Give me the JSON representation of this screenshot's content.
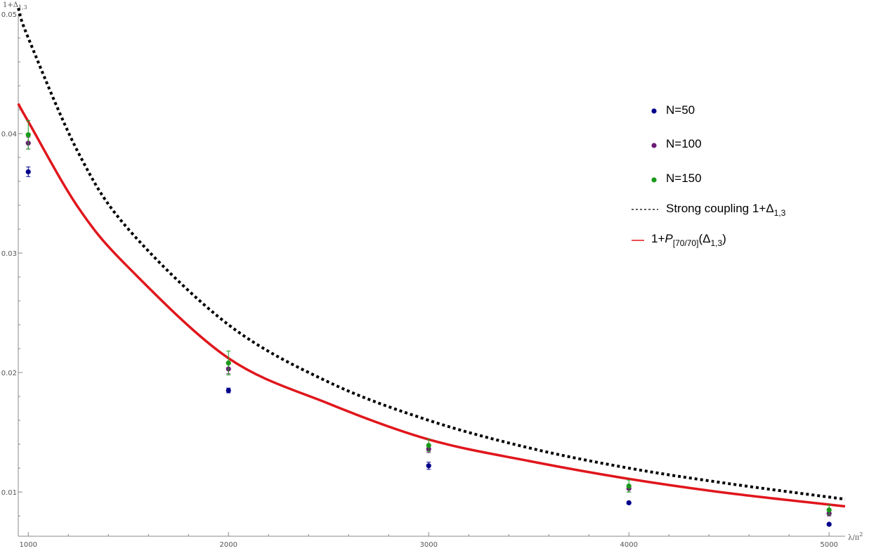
{
  "chart_data": {
    "type": "scatter",
    "title": "",
    "xlabel": "λ/π²",
    "ylabel": "1+Δ1,3",
    "xlim": [
      950,
      5080
    ],
    "ylim": [
      0.0063,
      0.05
    ],
    "x_ticks": [
      1000,
      2000,
      3000,
      4000,
      5000
    ],
    "y_ticks": [
      0.01,
      0.02,
      0.03,
      0.04,
      0.05
    ],
    "x_tick_labels": [
      "1000",
      "2000",
      "3000",
      "4000",
      "5000"
    ],
    "y_tick_labels": [
      "0.01",
      "0.02",
      "0.03",
      "0.04",
      "0.05"
    ],
    "grid": false,
    "legend_position": "top-right",
    "series": [
      {
        "name": "N=50",
        "kind": "points_with_error",
        "color": "#00008b",
        "x": [
          1000,
          2000,
          3000,
          4000,
          5000
        ],
        "y": [
          0.0368,
          0.0185,
          0.0122,
          0.0091,
          0.0073
        ],
        "err": [
          0.0004,
          0.0002,
          0.0003,
          0.0001,
          0.0001
        ]
      },
      {
        "name": "N=100",
        "kind": "points_with_error",
        "color": "#6b1d74",
        "x": [
          1000,
          2000,
          3000,
          4000,
          5000
        ],
        "y": [
          0.0392,
          0.0203,
          0.0136,
          0.0103,
          0.0082
        ],
        "err": [
          0.0005,
          0.0004,
          0.0003,
          0.0003,
          0.0002
        ]
      },
      {
        "name": "N=150",
        "kind": "points_with_error",
        "color": "#1a9a1a",
        "x": [
          1000,
          2000,
          3000,
          4000,
          5000
        ],
        "y": [
          0.0399,
          0.0208,
          0.0139,
          0.0105,
          0.0085
        ],
        "err": [
          0.0012,
          0.001,
          0.0005,
          0.0005,
          0.0004
        ]
      },
      {
        "name": "Strong coupling 1+Δ1,3",
        "kind": "curve",
        "style": "dotted",
        "color": "#000000",
        "x": [
          950,
          1000,
          1250,
          1500,
          2000,
          2500,
          3000,
          3500,
          4000,
          4500,
          5080
        ],
        "y": [
          0.0505,
          0.048,
          0.0384,
          0.032,
          0.024,
          0.0192,
          0.016,
          0.0137,
          0.012,
          0.0107,
          0.0094
        ]
      },
      {
        "name": "1+P[70/70](Δ1,3)",
        "kind": "curve",
        "style": "solid",
        "color": "#e0161c",
        "x": [
          950,
          1000,
          1250,
          1500,
          2000,
          2500,
          3000,
          3500,
          4000,
          4500,
          5080
        ],
        "y": [
          0.0425,
          0.041,
          0.0338,
          0.0288,
          0.0212,
          0.0174,
          0.0144,
          0.0126,
          0.0111,
          0.0099,
          0.0088
        ]
      }
    ]
  },
  "legend": [
    {
      "label": "N=50",
      "marker": "dot",
      "color": "#00008b"
    },
    {
      "label": "N=100",
      "marker": "dot",
      "color": "#6b1d74"
    },
    {
      "label": "N=150",
      "marker": "dot",
      "color": "#1a9a1a"
    },
    {
      "label_main": "Strong coupling 1+Δ",
      "label_sub": "1,3",
      "marker": "dashed",
      "color": "#000000"
    },
    {
      "label_pre": "1+",
      "label_italic": "P",
      "label_sub": "[70/70]",
      "label_post_pre": "(Δ",
      "label_post_sub": "1,3",
      "label_post_end": ")",
      "marker": "line",
      "color": "#e0161c"
    }
  ],
  "axes": {
    "x_label_pre": "λ/π",
    "x_label_sup": "2",
    "y_label_pre": "1+Δ",
    "y_label_sub": "1,3"
  }
}
